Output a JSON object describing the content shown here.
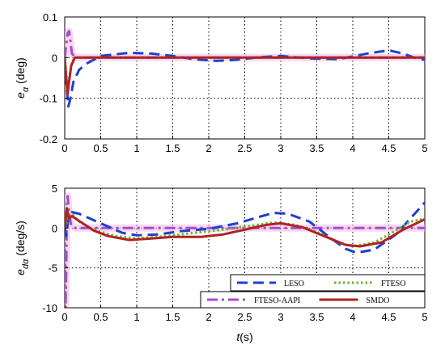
{
  "chart_data": [
    {
      "type": "line",
      "panel": "top",
      "ylabel_main": "e",
      "ylabel_sub": "α",
      "ylabel_unit": " (deg)",
      "xlim": [
        0,
        5
      ],
      "ylim": [
        -0.2,
        0.1
      ],
      "xticks": [
        0,
        0.5,
        1,
        1.5,
        2,
        2.5,
        3,
        3.5,
        4,
        4.5,
        5
      ],
      "yticks": [
        -0.2,
        -0.1,
        0,
        0.1
      ],
      "grid": true,
      "series": [
        {
          "name": "FTESO-AAPI",
          "color": "#a64dc8",
          "style": "dashdot",
          "width": 3,
          "points": [
            [
              0,
              0
            ],
            [
              0.02,
              0.03
            ],
            [
              0.04,
              0.06
            ],
            [
              0.06,
              0.065
            ],
            [
              0.08,
              0.04
            ],
            [
              0.1,
              0.01
            ],
            [
              0.15,
              0
            ],
            [
              5,
              0
            ]
          ]
        },
        {
          "name": "LESO",
          "color": "#1f3fd0",
          "style": "dashed",
          "width": 3,
          "points": [
            [
              0,
              0
            ],
            [
              0.02,
              -0.06
            ],
            [
              0.05,
              -0.12
            ],
            [
              0.08,
              -0.1
            ],
            [
              0.12,
              -0.06
            ],
            [
              0.2,
              -0.03
            ],
            [
              0.3,
              -0.015
            ],
            [
              0.5,
              0.004
            ],
            [
              0.9,
              0.012
            ],
            [
              1.2,
              0.01
            ],
            [
              1.5,
              0.004
            ],
            [
              1.8,
              -0.004
            ],
            [
              2.1,
              -0.008
            ],
            [
              2.4,
              -0.005
            ],
            [
              2.7,
              0.001
            ],
            [
              3.0,
              0.004
            ],
            [
              3.4,
              -0.002
            ],
            [
              3.8,
              -0.004
            ],
            [
              4.2,
              0.01
            ],
            [
              4.5,
              0.018
            ],
            [
              4.7,
              0.01
            ],
            [
              4.85,
              0
            ],
            [
              5,
              -0.005
            ]
          ]
        },
        {
          "name": "FTESO",
          "color": "#6ab82e",
          "style": "dotted",
          "width": 3,
          "points": [
            [
              0,
              0
            ],
            [
              0.02,
              -0.04
            ],
            [
              0.04,
              -0.08
            ],
            [
              0.07,
              -0.04
            ],
            [
              0.1,
              -0.01
            ],
            [
              0.15,
              0
            ],
            [
              5,
              0
            ]
          ]
        },
        {
          "name": "SMDO",
          "color": "#b22222",
          "style": "solid",
          "width": 3,
          "points": [
            [
              0,
              0
            ],
            [
              0.02,
              -0.05
            ],
            [
              0.04,
              -0.09
            ],
            [
              0.06,
              -0.06
            ],
            [
              0.09,
              -0.02
            ],
            [
              0.14,
              0
            ],
            [
              5,
              0
            ]
          ]
        }
      ]
    },
    {
      "type": "line",
      "panel": "bottom",
      "ylabel_main": "e",
      "ylabel_sub": "dα",
      "ylabel_unit": " (deg/s)",
      "xlabel_var": "t",
      "xlabel_unit": "(s)",
      "xlim": [
        0,
        5
      ],
      "ylim": [
        -10,
        5
      ],
      "xticks": [
        0,
        0.5,
        1,
        1.5,
        2,
        2.5,
        3,
        3.5,
        4,
        4.5,
        5
      ],
      "yticks": [
        -10,
        -5,
        0,
        5
      ],
      "grid": true,
      "series": [
        {
          "name": "FTESO-AAPI",
          "color": "#a64dc8",
          "style": "dashdot",
          "width": 3,
          "points": [
            [
              0,
              0
            ],
            [
              0.01,
              -10
            ],
            [
              0.02,
              -6
            ],
            [
              0.03,
              3
            ],
            [
              0.04,
              4
            ],
            [
              0.06,
              2
            ],
            [
              0.09,
              0.3
            ],
            [
              0.15,
              0
            ],
            [
              5,
              0
            ]
          ]
        },
        {
          "name": "LESO",
          "color": "#1f3fd0",
          "style": "dashed",
          "width": 3,
          "points": [
            [
              0,
              0
            ],
            [
              0.02,
              -1
            ],
            [
              0.05,
              1.2
            ],
            [
              0.1,
              2
            ],
            [
              0.2,
              1.8
            ],
            [
              0.4,
              1
            ],
            [
              0.6,
              0.2
            ],
            [
              0.8,
              -0.6
            ],
            [
              1.0,
              -0.9
            ],
            [
              1.3,
              -0.8
            ],
            [
              1.6,
              -0.4
            ],
            [
              2.0,
              -0.1
            ],
            [
              2.4,
              0.6
            ],
            [
              2.7,
              1.4
            ],
            [
              2.9,
              1.9
            ],
            [
              3.1,
              1.8
            ],
            [
              3.4,
              0.8
            ],
            [
              3.7,
              -1.3
            ],
            [
              3.9,
              -2.6
            ],
            [
              4.05,
              -3.1
            ],
            [
              4.3,
              -2.7
            ],
            [
              4.6,
              -0.8
            ],
            [
              4.8,
              1.2
            ],
            [
              5,
              3.2
            ]
          ]
        },
        {
          "name": "FTESO",
          "color": "#6ab82e",
          "style": "dotted",
          "width": 3,
          "points": [
            [
              0,
              0
            ],
            [
              0.05,
              1.5
            ],
            [
              0.1,
              1.8
            ],
            [
              0.2,
              0.8
            ],
            [
              0.4,
              -0.2
            ],
            [
              0.7,
              -1
            ],
            [
              1.0,
              -1.3
            ],
            [
              1.4,
              -1
            ],
            [
              1.8,
              -0.6
            ],
            [
              2.2,
              -0.2
            ],
            [
              2.6,
              0.3
            ],
            [
              2.9,
              0.7
            ],
            [
              3.2,
              0.4
            ],
            [
              3.5,
              -0.5
            ],
            [
              3.8,
              -1.8
            ],
            [
              4.0,
              -2.3
            ],
            [
              4.3,
              -1.8
            ],
            [
              4.6,
              -0.3
            ],
            [
              4.8,
              0.8
            ],
            [
              5,
              1.2
            ]
          ]
        },
        {
          "name": "SMDO",
          "color": "#b22222",
          "style": "solid",
          "width": 3,
          "points": [
            [
              0,
              0
            ],
            [
              0.03,
              2.5
            ],
            [
              0.06,
              1.2
            ],
            [
              0.1,
              1.5
            ],
            [
              0.2,
              0.9
            ],
            [
              0.4,
              -0.3
            ],
            [
              0.6,
              -1
            ],
            [
              0.9,
              -1.5
            ],
            [
              1.2,
              -1.3
            ],
            [
              1.5,
              -1.1
            ],
            [
              1.9,
              -1.1
            ],
            [
              2.2,
              -0.8
            ],
            [
              2.5,
              -0.2
            ],
            [
              2.8,
              0.4
            ],
            [
              3.0,
              0.6
            ],
            [
              3.3,
              0.1
            ],
            [
              3.6,
              -1
            ],
            [
              3.9,
              -2.1
            ],
            [
              4.1,
              -2.3
            ],
            [
              4.4,
              -1.8
            ],
            [
              4.7,
              -0.2
            ],
            [
              5,
              1.1
            ]
          ]
        }
      ],
      "legend": [
        [
          "LESO",
          "FTESO"
        ],
        [
          "FTESO-AAPI",
          "SMDO"
        ]
      ],
      "legend_position": "bottom-right"
    }
  ]
}
